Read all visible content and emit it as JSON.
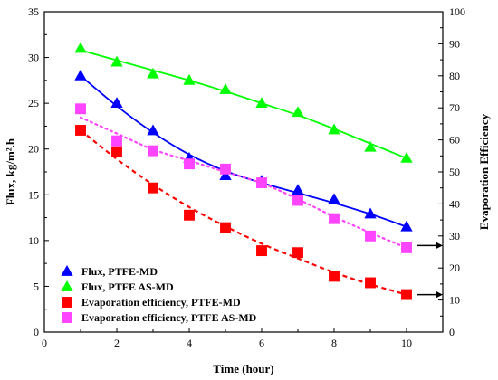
{
  "chart_data": {
    "type": "scatter",
    "title": "",
    "xlabel": "Time (hour)",
    "ylabel_left": "Flux, kg/m².h",
    "ylabel_right": "Evaporation Efficiency",
    "xlim": [
      0,
      11
    ],
    "ylim_left": [
      0,
      35
    ],
    "ylim_right": [
      0,
      100
    ],
    "x_ticks": [
      0,
      2,
      4,
      6,
      8,
      10
    ],
    "y_ticks_left": [
      0,
      5,
      10,
      15,
      20,
      25,
      30,
      35
    ],
    "y_ticks_right": [
      0,
      10,
      20,
      30,
      40,
      50,
      60,
      70,
      80,
      90,
      100
    ],
    "grid": false,
    "legend_position": "bottom-left",
    "series": [
      {
        "name": "Flux, PTFE-MD",
        "axis": "left",
        "marker": "triangle",
        "color": "#0000ff",
        "line_style": "solid",
        "x": [
          1,
          2,
          3,
          4,
          5,
          6,
          7,
          8,
          9,
          10
        ],
        "y": [
          28.0,
          25.0,
          22.0,
          19.0,
          17.1,
          16.5,
          15.5,
          14.5,
          12.9,
          11.5
        ],
        "fit": [
          28.0,
          24.7,
          21.8,
          19.4,
          17.6,
          16.3,
          15.2,
          14.1,
          12.9,
          11.5
        ]
      },
      {
        "name": "Flux, PTFE AS-MD",
        "axis": "left",
        "marker": "triangle",
        "color": "#00ff00",
        "line_style": "solid",
        "x": [
          1,
          2,
          3,
          4,
          5,
          6,
          7,
          8,
          9,
          10
        ],
        "y": [
          31.0,
          29.5,
          28.2,
          27.5,
          26.5,
          25.0,
          24.0,
          22.1,
          20.2,
          19.0
        ],
        "fit": [
          30.8,
          29.7,
          28.6,
          27.5,
          26.3,
          25.0,
          23.7,
          22.2,
          20.6,
          19.0
        ]
      },
      {
        "name": "Evaporation efficiency, PTFE-MD",
        "axis": "right",
        "marker": "square",
        "color": "#ff0000",
        "line_style": "dashed",
        "x": [
          1,
          2,
          3,
          4,
          5,
          6,
          7,
          8,
          9,
          10
        ],
        "y": [
          63.0,
          56.3,
          45.0,
          36.5,
          32.6,
          25.4,
          24.8,
          17.4,
          15.4,
          11.7
        ],
        "fit": [
          63.0,
          54.0,
          46.0,
          39.0,
          33.0,
          27.6,
          23.0,
          18.6,
          14.9,
          11.7
        ]
      },
      {
        "name": "Evaporation efficiency, PTFE AS-MD",
        "axis": "right",
        "marker": "square",
        "color": "#ff44ff",
        "line_style": "dotted",
        "x": [
          1,
          2,
          3,
          4,
          5,
          6,
          7,
          8,
          9,
          10
        ],
        "y": [
          69.7,
          59.7,
          56.6,
          52.5,
          50.9,
          46.6,
          41.1,
          35.4,
          30.0,
          26.3
        ],
        "fit": [
          67.0,
          62.0,
          57.0,
          53.5,
          50.0,
          46.5,
          41.5,
          36.0,
          31.0,
          26.3
        ]
      }
    ],
    "annotations": [
      {
        "type": "arrow",
        "axis": "right",
        "from_x": 10.3,
        "to_x": 11.0,
        "y": 27.0,
        "direction": "right"
      },
      {
        "type": "arrow",
        "axis": "right",
        "from_x": 10.3,
        "to_x": 11.0,
        "y": 11.7,
        "direction": "right"
      }
    ]
  }
}
